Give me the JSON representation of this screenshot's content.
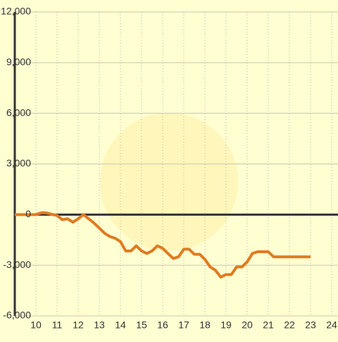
{
  "chart_data": {
    "type": "line",
    "x": [
      9,
      9.5,
      10,
      10.3,
      10.5,
      10.8,
      11,
      11.25,
      11.5,
      11.75,
      12,
      12.25,
      12.5,
      12.75,
      13,
      13.25,
      13.5,
      13.75,
      14,
      14.25,
      14.5,
      14.75,
      15,
      15.25,
      15.5,
      15.75,
      16,
      16.25,
      16.5,
      16.75,
      17,
      17.25,
      17.5,
      17.75,
      18,
      18.25,
      18.5,
      18.75,
      19,
      19.25,
      19.5,
      19.75,
      20,
      20.25,
      20.5,
      20.75,
      21,
      21.25,
      21.5,
      22,
      22.5,
      23
    ],
    "series": [
      {
        "color": "#e07b20",
        "values": [
          0,
          0,
          0,
          120,
          100,
          0,
          -50,
          -300,
          -250,
          -450,
          -250,
          0,
          -250,
          -500,
          -800,
          -1100,
          -1300,
          -1400,
          -1600,
          -2150,
          -2150,
          -1850,
          -2150,
          -2300,
          -2150,
          -1850,
          -2000,
          -2300,
          -2600,
          -2500,
          -2050,
          -2050,
          -2350,
          -2350,
          -2650,
          -3100,
          -3300,
          -3700,
          -3550,
          -3550,
          -3100,
          -3100,
          -2800,
          -2300,
          -2200,
          -2200,
          -2200,
          -2500,
          -2500,
          -2500,
          -2500,
          -2500
        ]
      }
    ],
    "xlim": [
      9,
      24.3
    ],
    "xticks": [
      10,
      11,
      12,
      13,
      14,
      15,
      16,
      17,
      18,
      19,
      20,
      21,
      22,
      23,
      24
    ],
    "ylim": [
      -6000,
      12000
    ],
    "yticks": [
      {
        "value": -6000,
        "label": "-6,000"
      },
      {
        "value": -3000,
        "label": "-3,000"
      },
      0,
      {
        "value": 3000,
        "label": "3,000"
      },
      {
        "value": 6000,
        "label": "6,000"
      },
      {
        "value": 9000,
        "label": "9,000"
      },
      {
        "value": 12000,
        "label": "12,000"
      }
    ],
    "grid": true
  }
}
